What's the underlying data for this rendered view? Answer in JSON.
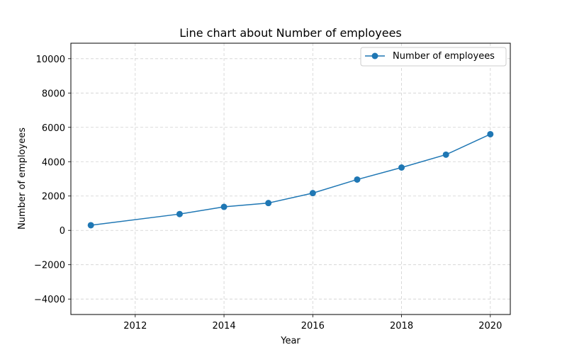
{
  "chart_data": {
    "type": "line",
    "title": "Line chart about Number of employees",
    "xlabel": "Year",
    "ylabel": "Number of employees",
    "x": [
      2011,
      2013,
      2014,
      2015,
      2016,
      2017,
      2018,
      2019,
      2020
    ],
    "series": [
      {
        "name": "Number of employees",
        "values": [
          300,
          950,
          1370,
          1590,
          2170,
          2960,
          3660,
          4410,
          5600
        ],
        "color": "#1f77b4"
      }
    ],
    "xlim": [
      2010.55,
      2020.45
    ],
    "ylim": [
      -4900,
      10900
    ],
    "xticks": [
      2012,
      2014,
      2016,
      2018,
      2020
    ],
    "yticks": [
      -4000,
      -2000,
      0,
      2000,
      4000,
      6000,
      8000,
      10000
    ],
    "grid": true,
    "legend_position": "top-right"
  }
}
